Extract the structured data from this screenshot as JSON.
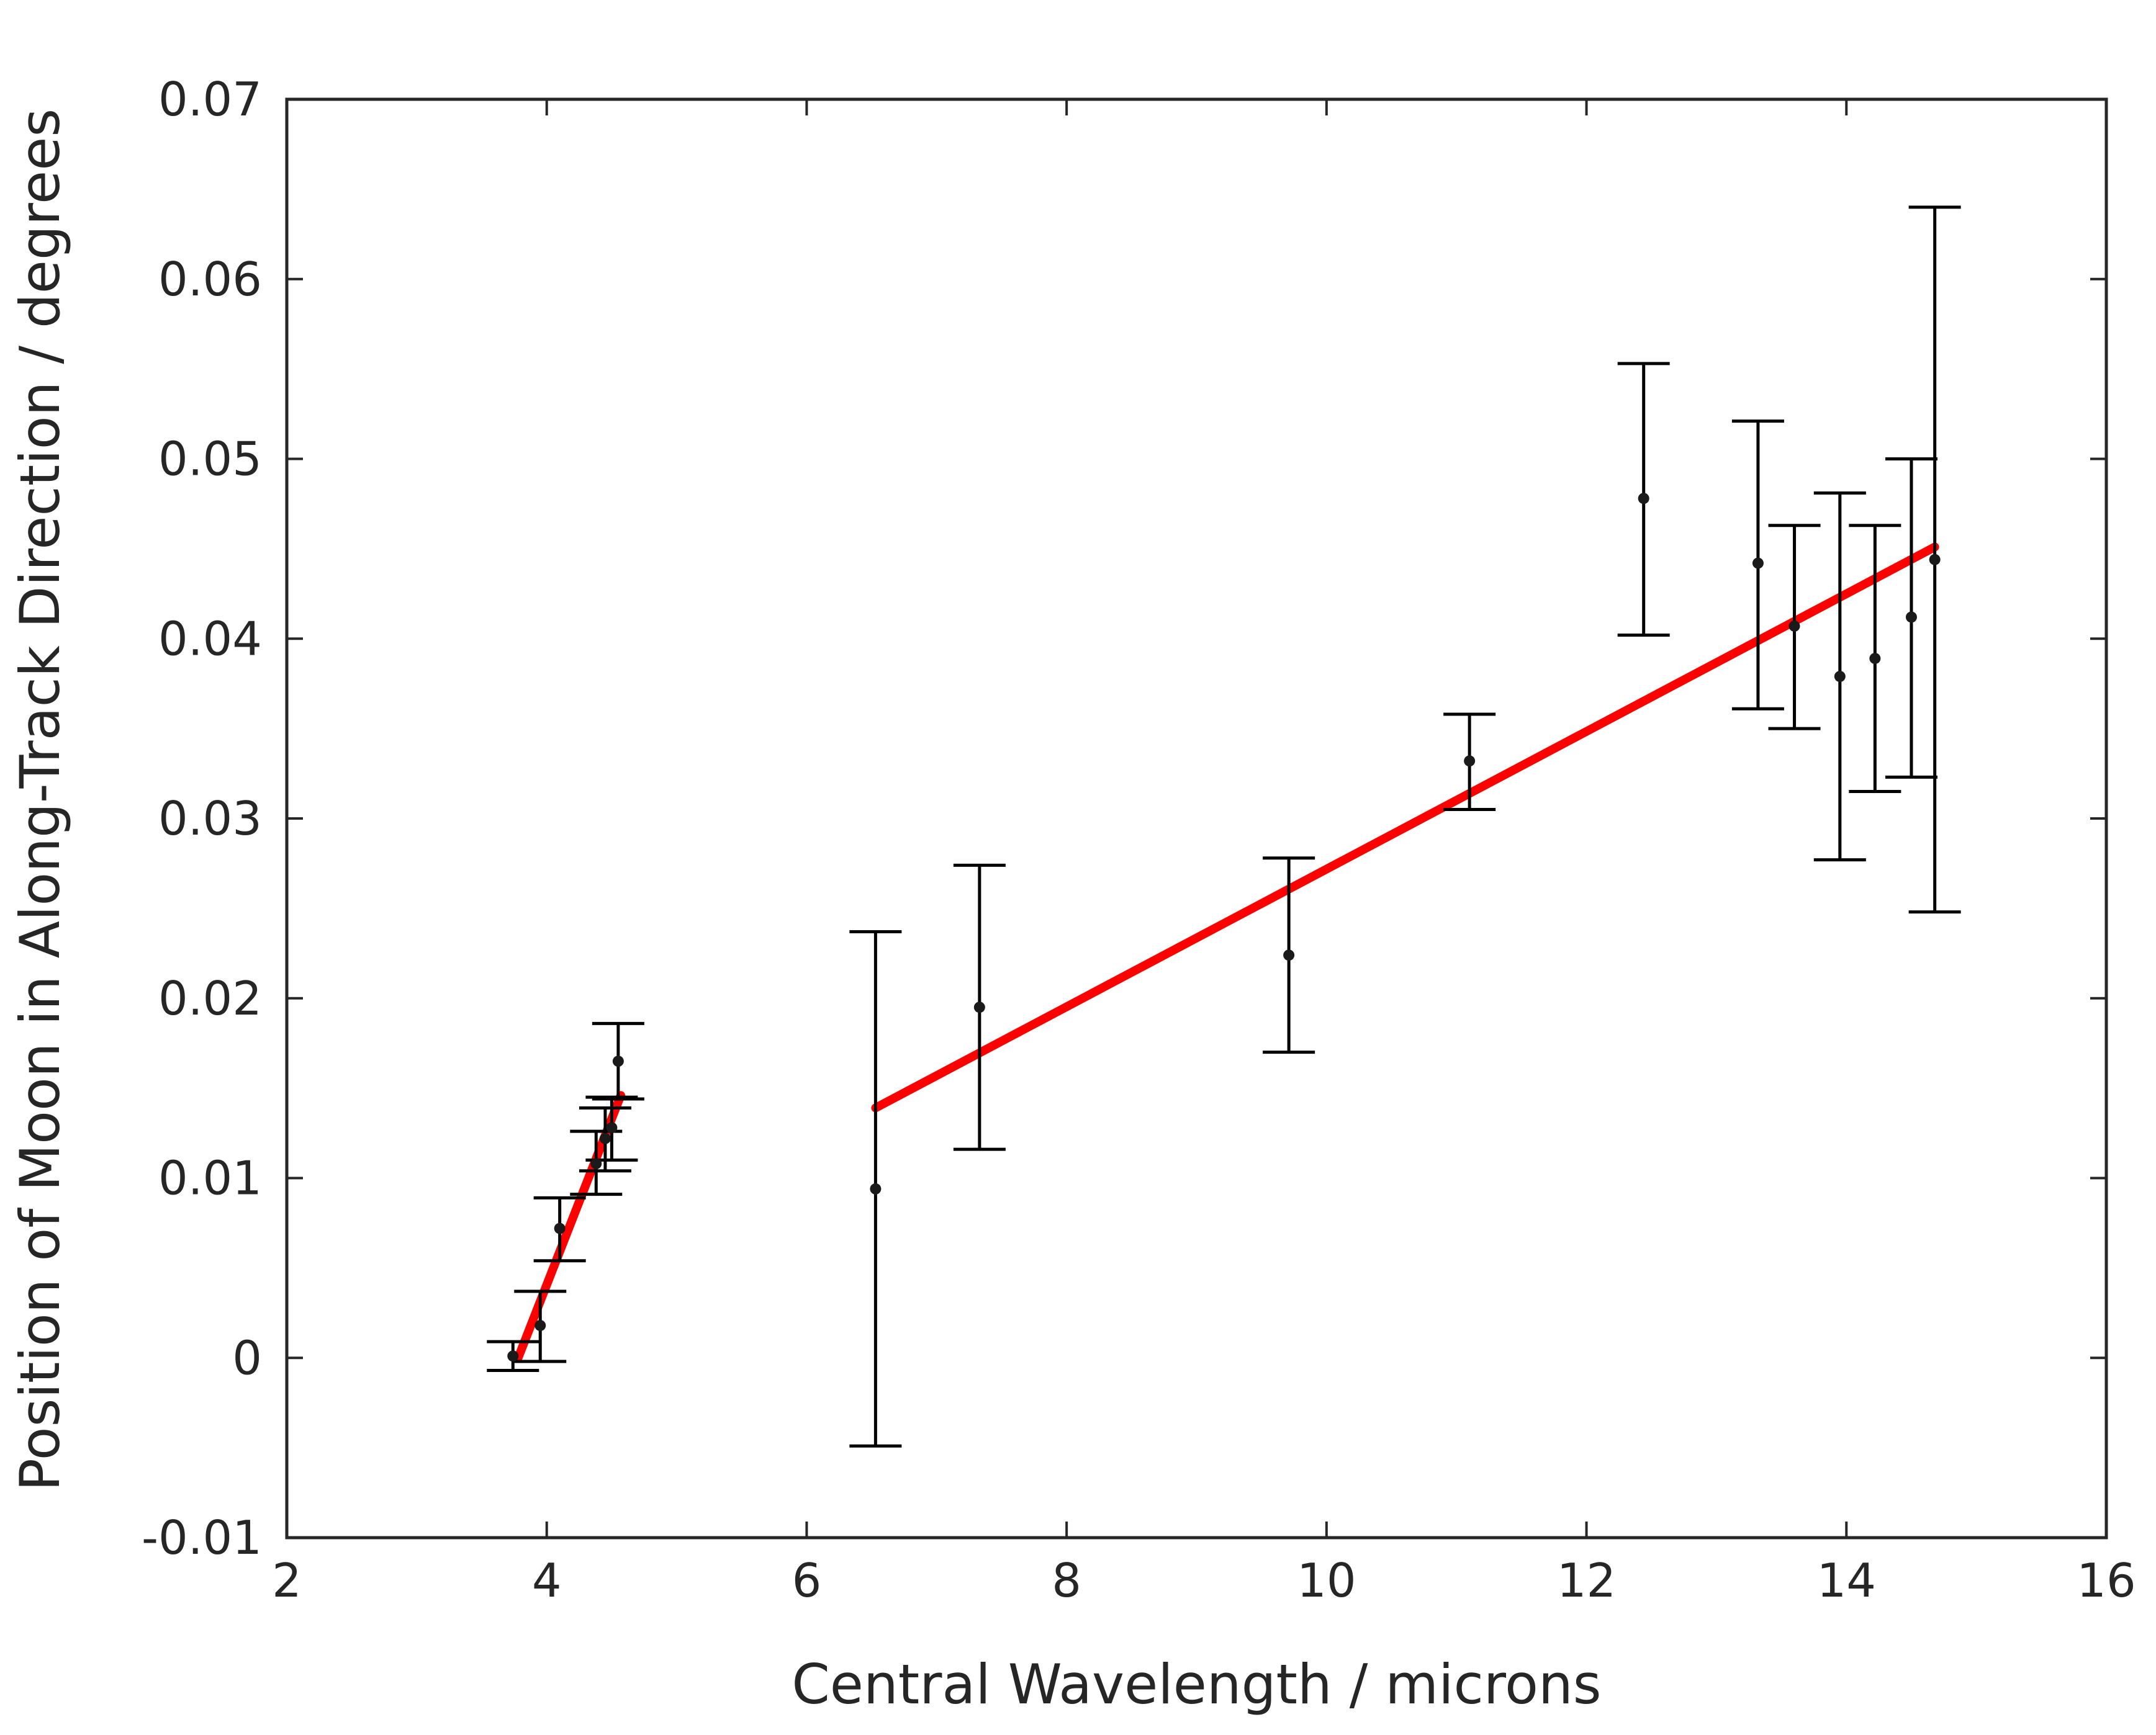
{
  "chart_data": {
    "type": "scatter",
    "title": "",
    "xlabel": "Central Wavelength / microns",
    "ylabel": "Position of Moon in Along-Track Direction / degrees",
    "xlim": [
      2,
      16
    ],
    "ylim": [
      -0.01,
      0.07
    ],
    "grid": false,
    "legend": "none",
    "x_ticks": [
      2,
      4,
      6,
      8,
      10,
      12,
      14,
      16
    ],
    "x_tick_labels": [
      "2",
      "4",
      "6",
      "8",
      "10",
      "12",
      "14",
      "16"
    ],
    "y_ticks": [
      -0.01,
      0,
      0.01,
      0.02,
      0.03,
      0.04,
      0.05,
      0.06,
      0.07
    ],
    "y_tick_labels": [
      "-0.01",
      "0",
      "0.01",
      "0.02",
      "0.03",
      "0.04",
      "0.05",
      "0.06",
      "0.07"
    ],
    "series": [
      {
        "name": "measurements",
        "style": "points-with-errorbars",
        "color": "#000000",
        "points": [
          {
            "x": 3.74,
            "y": 0.0001,
            "lo": -0.0007,
            "hi": 0.0009
          },
          {
            "x": 3.95,
            "y": 0.0018,
            "lo": -0.0002,
            "hi": 0.0037
          },
          {
            "x": 4.1,
            "y": 0.0072,
            "lo": 0.0054,
            "hi": 0.0089
          },
          {
            "x": 4.38,
            "y": 0.0108,
            "lo": 0.0091,
            "hi": 0.0126
          },
          {
            "x": 4.45,
            "y": 0.0122,
            "lo": 0.0104,
            "hi": 0.0139
          },
          {
            "x": 4.5,
            "y": 0.0128,
            "lo": 0.011,
            "hi": 0.0145
          },
          {
            "x": 4.55,
            "y": 0.0165,
            "lo": 0.0144,
            "hi": 0.0186
          },
          {
            "x": 6.53,
            "y": 0.0094,
            "lo": -0.0049,
            "hi": 0.0237
          },
          {
            "x": 7.33,
            "y": 0.0195,
            "lo": 0.0116,
            "hi": 0.0274
          },
          {
            "x": 9.71,
            "y": 0.0224,
            "lo": 0.017,
            "hi": 0.0278
          },
          {
            "x": 11.1,
            "y": 0.0332,
            "lo": 0.0305,
            "hi": 0.0358
          },
          {
            "x": 12.44,
            "y": 0.0478,
            "lo": 0.0402,
            "hi": 0.0553
          },
          {
            "x": 13.32,
            "y": 0.0442,
            "lo": 0.0361,
            "hi": 0.0521
          },
          {
            "x": 13.6,
            "y": 0.0407,
            "lo": 0.035,
            "hi": 0.0463
          },
          {
            "x": 13.95,
            "y": 0.0379,
            "lo": 0.0277,
            "hi": 0.0481
          },
          {
            "x": 14.22,
            "y": 0.0389,
            "lo": 0.0315,
            "hi": 0.0463
          },
          {
            "x": 14.5,
            "y": 0.0412,
            "lo": 0.0323,
            "hi": 0.05
          },
          {
            "x": 14.68,
            "y": 0.0444,
            "lo": 0.0248,
            "hi": 0.064
          }
        ]
      },
      {
        "name": "fit-short-wavelength",
        "style": "line",
        "color": "#ff0000",
        "x": [
          3.78,
          4.57
        ],
        "y": [
          0.0,
          0.0146
        ]
      },
      {
        "name": "fit-long-wavelength",
        "style": "line",
        "color": "#ff0000",
        "x": [
          6.53,
          14.68
        ],
        "y": [
          0.0139,
          0.0451
        ]
      }
    ]
  }
}
